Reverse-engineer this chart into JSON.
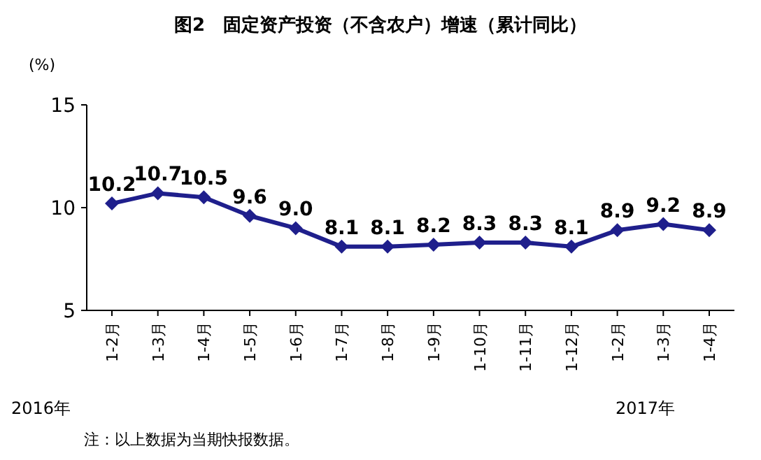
{
  "chart_data": {
    "type": "line",
    "title": "图2　固定资产投资（不含农户）增速（累计同比）",
    "ylabel": "(%)",
    "categories": [
      "1-2月",
      "1-3月",
      "1-4月",
      "1-5月",
      "1-6月",
      "1-7月",
      "1-8月",
      "1-9月",
      "1-10月",
      "1-11月",
      "1-12月",
      "1-2月",
      "1-3月",
      "1-4月"
    ],
    "values": [
      10.2,
      10.7,
      10.5,
      9.6,
      9.0,
      8.1,
      8.1,
      8.2,
      8.3,
      8.3,
      8.1,
      8.9,
      9.2,
      8.9
    ],
    "value_labels": [
      "10.2",
      "10.7",
      "10.5",
      "9.6",
      "9.0",
      "8.1",
      "8.1",
      "8.2",
      "8.3",
      "8.3",
      "8.1",
      "8.9",
      "9.2",
      "8.9"
    ],
    "color": "#1f1f8c",
    "marker": "diamond",
    "ylim": [
      5,
      15
    ],
    "yticks": [
      5,
      10,
      15
    ],
    "annotations": [
      "2016年",
      "2017年",
      "注：以上数据为当期快报数据。"
    ]
  }
}
